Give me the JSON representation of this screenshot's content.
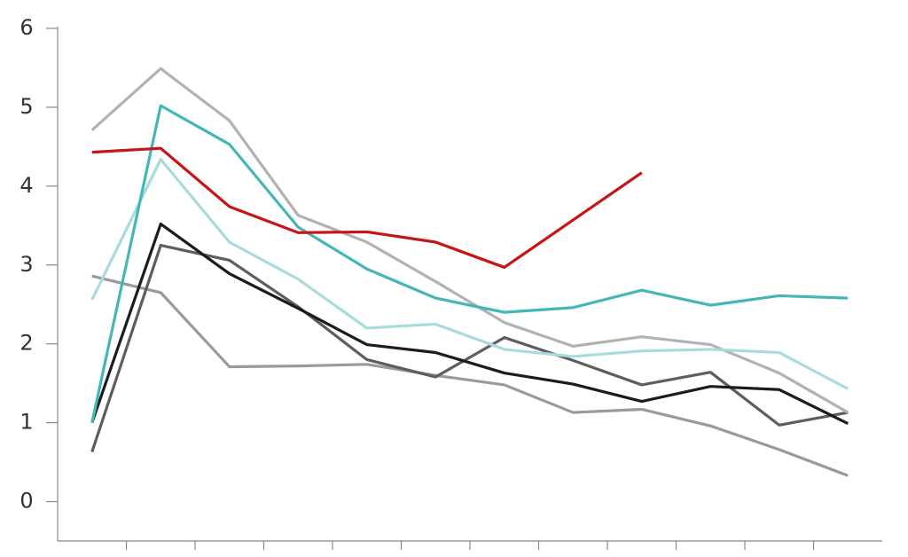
{
  "chart_data": {
    "type": "line",
    "categories": [
      null,
      null,
      null,
      null,
      null,
      null,
      null,
      null,
      null,
      null,
      null,
      null
    ],
    "ylim": [
      -0.5,
      6
    ],
    "yticks": [
      0,
      1,
      2,
      3,
      4,
      5,
      6
    ],
    "series": [
      {
        "color": "#9a9a9a",
        "values": [
          2.86,
          2.65,
          1.71,
          1.72,
          1.74,
          1.6,
          1.48,
          1.13,
          1.17,
          0.96,
          0.66,
          0.33
        ]
      },
      {
        "color": "#5e5e5e",
        "values": [
          0.63,
          3.25,
          3.06,
          2.47,
          1.8,
          1.58,
          2.08,
          1.79,
          1.48,
          1.64,
          0.97,
          1.13
        ]
      },
      {
        "color": "#b2b2b2",
        "values": [
          4.71,
          5.49,
          4.83,
          3.63,
          3.29,
          2.79,
          2.27,
          1.97,
          2.09,
          1.99,
          1.63,
          1.13
        ]
      },
      {
        "color": "#a6dddb",
        "values": [
          2.56,
          4.34,
          3.29,
          2.82,
          2.2,
          2.25,
          1.93,
          1.84,
          1.91,
          1.93,
          1.89,
          1.43
        ]
      },
      {
        "color": "#1c1c1c",
        "values": [
          1.0,
          3.52,
          2.89,
          2.45,
          1.99,
          1.89,
          1.63,
          1.49,
          1.27,
          1.46,
          1.42,
          0.99
        ]
      },
      {
        "color": "#45b6b6",
        "values": [
          1.0,
          5.02,
          4.53,
          3.48,
          2.95,
          2.58,
          2.4,
          2.46,
          2.68,
          2.49,
          2.61,
          2.58
        ]
      },
      {
        "color": "#c81414",
        "values": [
          4.43,
          4.48,
          3.74,
          3.41,
          3.42,
          3.29,
          2.97,
          3.57,
          4.17,
          null,
          null,
          null
        ]
      }
    ]
  }
}
